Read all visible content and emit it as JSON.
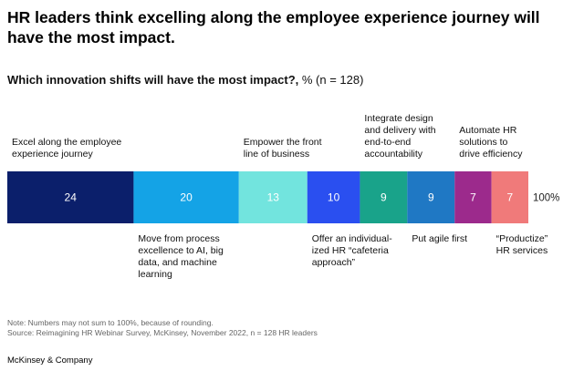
{
  "title": "HR leaders think excelling along the employee experience journey will have the most impact.",
  "subtitle_bold": "Which innovation shifts will have the most impact?,",
  "subtitle_rest": " % (n = 128)",
  "notes": [
    "Note: Numbers may not sum to 100%, because of rounding.",
    "Source: Reimagining HR Webinar Survey, McKinsey, November 2022, n = 128 HR leaders"
  ],
  "brand": "McKinsey & Company",
  "chart_data": {
    "type": "bar",
    "orientation": "horizontal-stacked",
    "total_label": "100%",
    "series": [
      {
        "label": "Excel along the employee experience journey",
        "lines": [
          "Excel along the employee",
          "experience journey"
        ],
        "value": 24,
        "color": "#0b1f6b",
        "label_pos": "above"
      },
      {
        "label": "Move from process excellence to AI, big data, and machine learning",
        "lines": [
          "Move from process",
          "excellence to AI, big",
          "data, and machine",
          "learning"
        ],
        "value": 20,
        "color": "#14a3e6",
        "label_pos": "below"
      },
      {
        "label": "Empower the front line of business",
        "lines": [
          "Empower the front",
          "line of business"
        ],
        "value": 13,
        "color": "#72e4de",
        "label_pos": "above"
      },
      {
        "label": "Offer an individual-ized HR “cafeteria approach”",
        "lines": [
          "Offer an individual-",
          "ized HR “cafeteria",
          "approach”"
        ],
        "value": 10,
        "color": "#2a4ff0",
        "label_pos": "below"
      },
      {
        "label": "Integrate design and delivery with end-to-end accountability",
        "lines": [
          "Integrate design",
          "and delivery with",
          "end-to-end",
          "accountability"
        ],
        "value": 9,
        "color": "#19a38a",
        "label_pos": "above"
      },
      {
        "label": "Put agile first",
        "lines": [
          "Put agile first"
        ],
        "value": 9,
        "color": "#1f78c4",
        "label_pos": "below"
      },
      {
        "label": "Automate HR solutions to drive efficiency",
        "lines": [
          "Automate HR",
          "solutions to",
          "drive efficiency"
        ],
        "value": 7,
        "color": "#9c2a8c",
        "label_pos": "above"
      },
      {
        "label": "“Productize” HR services",
        "lines": [
          "“Productize”",
          "HR services"
        ],
        "value": 7,
        "color": "#f07a7a",
        "label_pos": "below"
      }
    ]
  }
}
